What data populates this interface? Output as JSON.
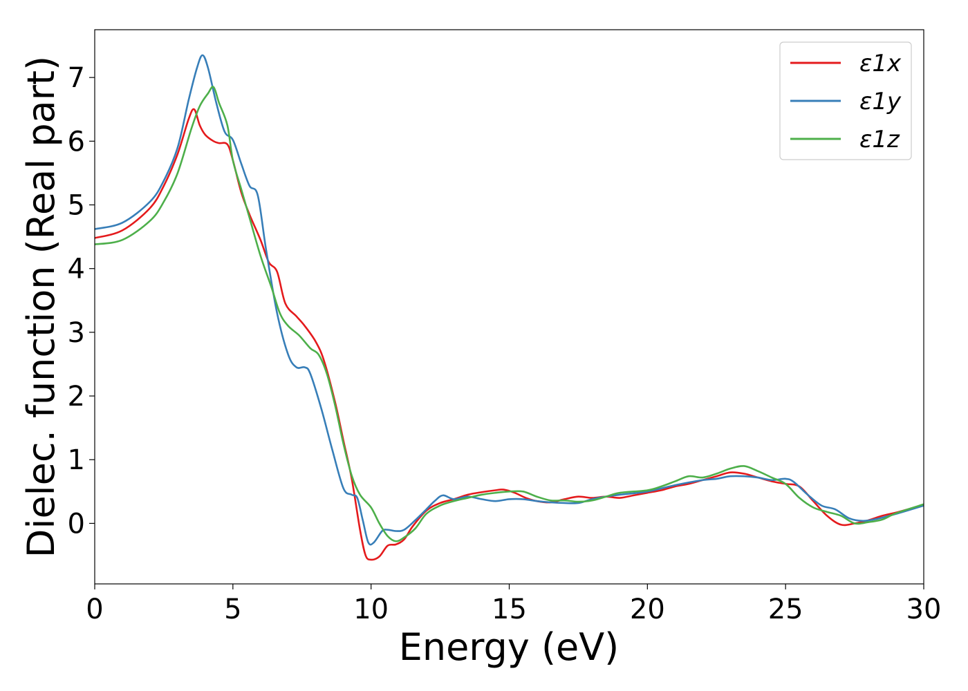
{
  "chart_data": {
    "type": "line",
    "title": "",
    "xlabel": "Energy (eV)",
    "ylabel": "Dielec. function (Real part)",
    "xlim": [
      0,
      30
    ],
    "ylim": [
      -0.95,
      7.75
    ],
    "xticks": [
      0,
      5,
      10,
      15,
      20,
      25,
      30
    ],
    "xtick_labels": [
      "0",
      "5",
      "10",
      "15",
      "20",
      "25",
      "30"
    ],
    "yticks": [
      0,
      1,
      2,
      3,
      4,
      5,
      6,
      7
    ],
    "ytick_labels": [
      "0",
      "1",
      "2",
      "3",
      "4",
      "5",
      "6",
      "7"
    ],
    "grid": false,
    "legend_position": "top-right",
    "series": [
      {
        "name": "ε1x",
        "color": "#e41a1c",
        "x": [
          0,
          1,
          2,
          2.5,
          3,
          3.4,
          3.6,
          3.8,
          4.0,
          4.3,
          4.5,
          4.8,
          5.0,
          5.3,
          5.6,
          6.0,
          6.3,
          6.6,
          6.9,
          7.3,
          7.6,
          8.0,
          8.3,
          8.7,
          9.0,
          9.3,
          9.6,
          9.8,
          10.0,
          10.3,
          10.6,
          10.9,
          11.2,
          11.5,
          12.0,
          12.5,
          13.0,
          13.5,
          14.0,
          14.5,
          14.8,
          15.2,
          15.6,
          16.0,
          16.5,
          17.0,
          17.5,
          18.0,
          18.5,
          19.0,
          19.5,
          20.0,
          20.5,
          21.0,
          21.5,
          22.0,
          22.5,
          23.0,
          23.5,
          24.0,
          24.5,
          25.0,
          25.5,
          26.0,
          26.5,
          27.0,
          27.5,
          28.0,
          28.5,
          29.0,
          29.5,
          30.0
        ],
        "y": [
          4.48,
          4.6,
          4.95,
          5.3,
          5.8,
          6.35,
          6.5,
          6.25,
          6.1,
          6.0,
          5.97,
          5.95,
          5.7,
          5.2,
          4.85,
          4.45,
          4.1,
          3.95,
          3.45,
          3.25,
          3.1,
          2.85,
          2.55,
          1.9,
          1.3,
          0.7,
          -0.1,
          -0.5,
          -0.57,
          -0.52,
          -0.35,
          -0.33,
          -0.25,
          -0.05,
          0.2,
          0.32,
          0.38,
          0.45,
          0.49,
          0.52,
          0.53,
          0.48,
          0.4,
          0.35,
          0.33,
          0.38,
          0.42,
          0.4,
          0.42,
          0.4,
          0.44,
          0.48,
          0.52,
          0.58,
          0.62,
          0.68,
          0.74,
          0.8,
          0.78,
          0.72,
          0.66,
          0.62,
          0.58,
          0.35,
          0.12,
          -0.02,
          0.0,
          0.05,
          0.12,
          0.17,
          0.23,
          0.29
        ]
      },
      {
        "name": "ε1y",
        "color": "#377eb8",
        "x": [
          0,
          1,
          2,
          2.5,
          3,
          3.4,
          3.7,
          3.9,
          4.1,
          4.4,
          4.7,
          5.0,
          5.3,
          5.6,
          5.9,
          6.2,
          6.6,
          7.0,
          7.3,
          7.6,
          7.8,
          8.2,
          8.6,
          9.0,
          9.3,
          9.5,
          9.7,
          9.9,
          10.1,
          10.4,
          10.6,
          10.9,
          11.2,
          11.6,
          12.0,
          12.3,
          12.6,
          13.0,
          13.5,
          14.0,
          14.5,
          15.0,
          15.5,
          16.0,
          16.5,
          17.0,
          17.5,
          18.0,
          18.5,
          19.0,
          20.0,
          21.0,
          22.0,
          22.5,
          23.0,
          23.5,
          24.0,
          24.5,
          25.0,
          25.3,
          25.8,
          26.3,
          26.8,
          27.3,
          27.8,
          28.3,
          29.0,
          30.0
        ],
        "y": [
          4.62,
          4.72,
          5.05,
          5.38,
          5.9,
          6.65,
          7.15,
          7.35,
          7.15,
          6.6,
          6.15,
          6.02,
          5.65,
          5.3,
          5.15,
          4.3,
          3.3,
          2.65,
          2.45,
          2.45,
          2.35,
          1.8,
          1.15,
          0.55,
          0.45,
          0.4,
          0.05,
          -0.3,
          -0.3,
          -0.12,
          -0.1,
          -0.12,
          -0.1,
          0.05,
          0.22,
          0.35,
          0.44,
          0.38,
          0.42,
          0.38,
          0.35,
          0.38,
          0.38,
          0.35,
          0.33,
          0.32,
          0.32,
          0.38,
          0.42,
          0.45,
          0.5,
          0.6,
          0.68,
          0.7,
          0.74,
          0.74,
          0.72,
          0.68,
          0.7,
          0.65,
          0.45,
          0.28,
          0.22,
          0.08,
          0.04,
          0.07,
          0.15,
          0.28
        ]
      },
      {
        "name": "ε1z",
        "color": "#4daf4a",
        "x": [
          0,
          1,
          2,
          2.5,
          3,
          3.5,
          3.8,
          4.1,
          4.3,
          4.5,
          4.8,
          5.0,
          5.3,
          5.6,
          6.0,
          6.4,
          6.7,
          7.0,
          7.4,
          7.8,
          8.1,
          8.4,
          8.7,
          9.0,
          9.3,
          9.6,
          10.0,
          10.3,
          10.6,
          10.9,
          11.2,
          11.6,
          12.0,
          12.5,
          13.0,
          13.5,
          14.0,
          14.5,
          15.0,
          15.5,
          16.0,
          16.5,
          17.0,
          17.5,
          18.0,
          18.5,
          19.0,
          20.0,
          20.5,
          21.0,
          21.5,
          22.0,
          22.5,
          23.0,
          23.5,
          24.0,
          24.5,
          25.0,
          25.5,
          26.0,
          26.5,
          27.0,
          27.5,
          28.0,
          28.5,
          29.0,
          30.0
        ],
        "y": [
          4.38,
          4.45,
          4.75,
          5.05,
          5.5,
          6.2,
          6.55,
          6.75,
          6.85,
          6.6,
          6.25,
          5.7,
          5.25,
          4.8,
          4.2,
          3.7,
          3.3,
          3.1,
          2.95,
          2.75,
          2.65,
          2.35,
          1.85,
          1.25,
          0.75,
          0.45,
          0.25,
          0.0,
          -0.2,
          -0.28,
          -0.22,
          -0.08,
          0.15,
          0.28,
          0.35,
          0.4,
          0.45,
          0.48,
          0.5,
          0.5,
          0.42,
          0.36,
          0.36,
          0.34,
          0.36,
          0.42,
          0.48,
          0.52,
          0.58,
          0.66,
          0.74,
          0.72,
          0.78,
          0.86,
          0.9,
          0.82,
          0.72,
          0.62,
          0.4,
          0.25,
          0.18,
          0.12,
          0.0,
          0.02,
          0.06,
          0.16,
          0.3
        ]
      }
    ]
  }
}
